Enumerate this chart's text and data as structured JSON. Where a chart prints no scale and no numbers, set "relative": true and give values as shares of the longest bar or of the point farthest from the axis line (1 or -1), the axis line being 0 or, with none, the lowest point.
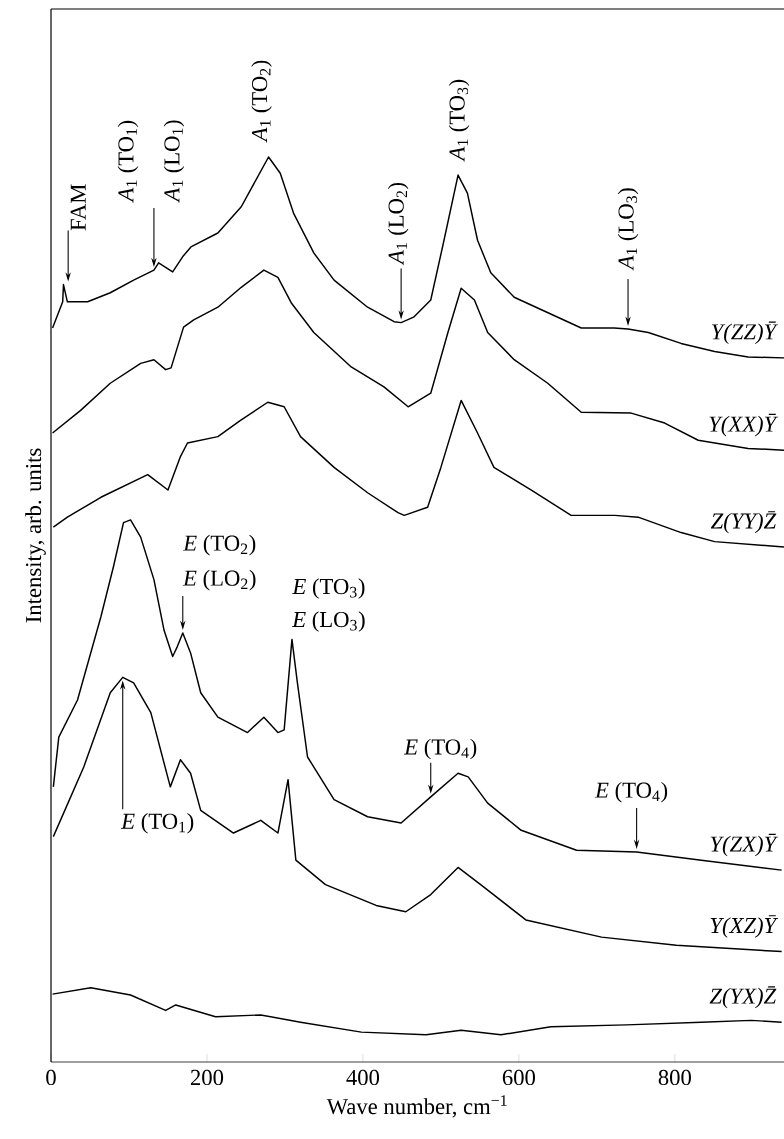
{
  "chart_data": {
    "type": "line",
    "relative": true,
    "xlabel": "Wave number, cm$^{−1}$",
    "ylabel": "Intensity, arb. units",
    "xlim": [
      0,
      940
    ],
    "xticks": [
      0,
      200,
      400,
      600,
      800
    ],
    "legend": false,
    "series": [
      {
        "name": "Y(ZZ)Ȳ",
        "color": "#000000",
        "x": [
          2,
          15,
          16,
          21,
          47,
          76,
          106,
          132,
          138,
          156,
          169,
          180,
          214,
          244,
          279,
          294,
          311,
          337,
          363,
          406,
          440,
          449,
          465,
          487,
          504,
          522,
          534,
          547,
          564,
          594,
          637,
          680,
          722,
          740,
          766,
          808,
          851,
          894,
          940
        ],
        "values": [
          0.811,
          0.84,
          0.859,
          0.84,
          0.84,
          0.85,
          0.864,
          0.875,
          0.883,
          0.873,
          0.89,
          0.901,
          0.916,
          0.945,
          1.0,
          0.982,
          0.938,
          0.894,
          0.864,
          0.834,
          0.818,
          0.817,
          0.823,
          0.842,
          0.908,
          0.98,
          0.96,
          0.908,
          0.872,
          0.845,
          0.828,
          0.811,
          0.811,
          0.81,
          0.806,
          0.794,
          0.785,
          0.779,
          0.778
        ]
      },
      {
        "name": "Y(XX)Ȳ",
        "color": "#000000",
        "x": [
          2,
          38,
          76,
          115,
          132,
          147,
          154,
          170,
          183,
          214,
          244,
          273,
          291,
          308,
          337,
          385,
          427,
          458,
          487,
          509,
          526,
          543,
          560,
          594,
          637,
          680,
          744,
          787,
          830,
          894,
          940
        ],
        "values": [
          0.695,
          0.72,
          0.75,
          0.772,
          0.776,
          0.765,
          0.767,
          0.812,
          0.82,
          0.834,
          0.856,
          0.875,
          0.867,
          0.839,
          0.806,
          0.768,
          0.746,
          0.724,
          0.739,
          0.806,
          0.855,
          0.842,
          0.806,
          0.776,
          0.75,
          0.718,
          0.717,
          0.706,
          0.687,
          0.678,
          0.676
        ]
      },
      {
        "name": "Z(YY)Z̄",
        "color": "#000000",
        "x": [
          3,
          21,
          64,
          124,
          150,
          166,
          175,
          214,
          243,
          278,
          299,
          320,
          363,
          406,
          445,
          453,
          483,
          500,
          526,
          547,
          568,
          616,
          667,
          723,
          753,
          808,
          851,
          940
        ],
        "values": [
          0.591,
          0.602,
          0.624,
          0.649,
          0.632,
          0.669,
          0.684,
          0.691,
          0.709,
          0.729,
          0.724,
          0.691,
          0.657,
          0.629,
          0.607,
          0.604,
          0.613,
          0.657,
          0.731,
          0.695,
          0.657,
          0.632,
          0.604,
          0.604,
          0.602,
          0.585,
          0.575,
          0.569
        ]
      },
      {
        "name": "Y(ZX)Ȳ",
        "color": "#000000",
        "x": [
          3,
          10,
          34,
          64,
          80,
          93,
          102,
          115,
          132,
          145,
          156,
          162,
          169,
          179,
          192,
          214,
          252,
          273,
          291,
          299,
          309,
          316,
          329,
          363,
          406,
          449,
          487,
          522,
          535,
          560,
          603,
          674,
          751,
          834,
          937
        ],
        "values": [
          0.304,
          0.359,
          0.4,
          0.492,
          0.547,
          0.596,
          0.599,
          0.58,
          0.533,
          0.477,
          0.448,
          0.459,
          0.474,
          0.452,
          0.408,
          0.381,
          0.364,
          0.381,
          0.364,
          0.367,
          0.467,
          0.419,
          0.337,
          0.29,
          0.271,
          0.264,
          0.293,
          0.319,
          0.315,
          0.286,
          0.256,
          0.234,
          0.232,
          0.223,
          0.212
        ]
      },
      {
        "name": "Y(XZ)Ȳ",
        "color": "#000000",
        "x": [
          3,
          42,
          76,
          92,
          106,
          128,
          153,
          166,
          179,
          192,
          234,
          269,
          291,
          304,
          314,
          352,
          417,
          455,
          487,
          522,
          551,
          609,
          706,
          802,
          937
        ],
        "values": [
          0.249,
          0.326,
          0.408,
          0.425,
          0.419,
          0.386,
          0.304,
          0.334,
          0.319,
          0.278,
          0.253,
          0.267,
          0.253,
          0.312,
          0.223,
          0.196,
          0.173,
          0.166,
          0.185,
          0.215,
          0.196,
          0.157,
          0.138,
          0.129,
          0.122
        ]
      },
      {
        "name": "Z(YX)Z̄",
        "color": "#000000",
        "x": [
          2,
          51,
          102,
          147,
          160,
          211,
          269,
          320,
          398,
          481,
          526,
          577,
          641,
          738,
          834,
          898,
          937
        ],
        "values": [
          0.075,
          0.082,
          0.074,
          0.057,
          0.063,
          0.05,
          0.052,
          0.044,
          0.033,
          0.03,
          0.035,
          0.03,
          0.039,
          0.041,
          0.044,
          0.046,
          0.044
        ]
      }
    ],
    "annotations": [
      {
        "text": "FAM",
        "x": 22,
        "y": 0.859
      },
      {
        "text": "*A*$_{1}$ (TO$_{1}$)",
        "x": 132,
        "y": 0.875
      },
      {
        "text": "*A*$_{1}$ (LO$_{1}$)",
        "x": 132,
        "y": 0.875
      },
      {
        "text": "*A*$_{1}$ (TO$_{2}$)",
        "x": 279,
        "y": 1.0
      },
      {
        "text": "*A*$_{1}$ (LO$_{2}$)",
        "x": 449,
        "y": 0.817
      },
      {
        "text": "*A*$_{1}$ (TO$_{3}$)",
        "x": 522,
        "y": 0.98
      },
      {
        "text": "*A*$_{1}$ (LO$_{3}$)",
        "x": 740,
        "y": 0.81
      },
      "*E* (TO$_{2}$)",
      {
        "text": "*E* (LO$_{2}$)",
        "x": 169,
        "y": 0.474
      },
      {
        "text": "*E* (TO$_{3}$)",
        "x": 309,
        "y": 0.467
      },
      {
        "text": "*E* (LO$_{3}$)",
        "x": 309,
        "y": 0.467
      },
      {
        "text": "*E* (TO$_{4}$)",
        "x": 487,
        "y": 0.293
      },
      {
        "text": "*E* (TO$_{4}$)",
        "x": 751,
        "y": 0.232
      },
      {
        "text": "*E* (TO$_{1}$)",
        "x": 92,
        "y": 0.425
      }
    ]
  }
}
